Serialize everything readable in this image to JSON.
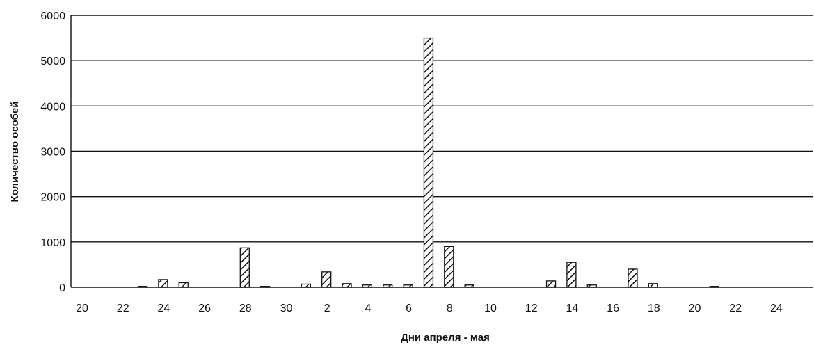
{
  "chart_data": {
    "type": "bar",
    "title": "",
    "xlabel": "Дни апреля - мая",
    "ylabel": "Количество особей",
    "ylim": [
      0,
      6000
    ],
    "y_ticks": [
      0,
      1000,
      2000,
      3000,
      4000,
      5000,
      6000
    ],
    "grid": true,
    "bar_style": "diagonal-hatch",
    "categories": [
      "20",
      "21",
      "22",
      "23",
      "24",
      "25",
      "26",
      "27",
      "28",
      "29",
      "30",
      "1",
      "2",
      "3",
      "4",
      "5",
      "6",
      "7",
      "8",
      "9",
      "10",
      "11",
      "12",
      "13",
      "14",
      "15",
      "16",
      "17",
      "18",
      "19",
      "20",
      "21",
      "22",
      "23",
      "24"
    ],
    "x_tick_labels": [
      "20",
      "22",
      "24",
      "26",
      "28",
      "30",
      "2",
      "4",
      "6",
      "8",
      "10",
      "12",
      "14",
      "16",
      "18",
      "20",
      "22",
      "24"
    ],
    "values": [
      0,
      0,
      0,
      20,
      170,
      100,
      0,
      0,
      870,
      20,
      0,
      70,
      340,
      80,
      50,
      50,
      50,
      5500,
      900,
      50,
      0,
      0,
      0,
      140,
      550,
      50,
      0,
      400,
      80,
      0,
      0,
      20,
      0,
      0,
      0
    ]
  },
  "colors": {
    "bar_stroke": "#111111",
    "bar_fill": "#ffffff",
    "grid": "#111111",
    "text": "#111111"
  }
}
